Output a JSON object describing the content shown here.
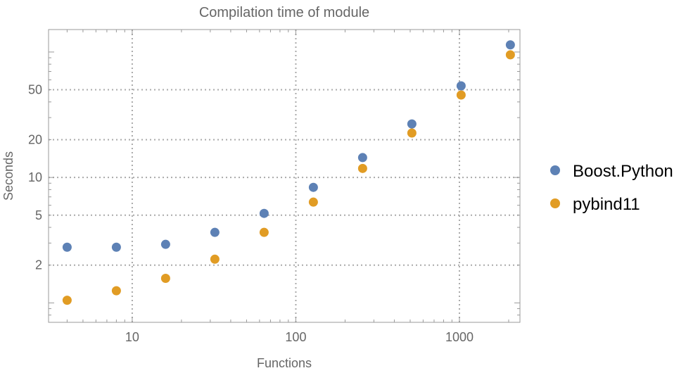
{
  "chart_data": {
    "type": "scatter",
    "title": "Compilation time of module",
    "xlabel": "Functions",
    "ylabel": "Seconds",
    "xscale": "log",
    "yscale": "log",
    "xlim": [
      3.08,
      2344
    ],
    "ylim": [
      0.7,
      151
    ],
    "xticks": [
      {
        "value": 10,
        "label": "10"
      },
      {
        "value": 100,
        "label": "100"
      },
      {
        "value": 1000,
        "label": "1000"
      }
    ],
    "yticks": [
      {
        "value": 2,
        "label": "2"
      },
      {
        "value": 5,
        "label": "5"
      },
      {
        "value": 10,
        "label": "10"
      },
      {
        "value": 20,
        "label": "20"
      },
      {
        "value": 50,
        "label": "50"
      }
    ],
    "grid": true,
    "legend_position": "right",
    "x": [
      4,
      8,
      16,
      32,
      64,
      128,
      256,
      512,
      1024,
      2048
    ],
    "series": [
      {
        "name": "Boost.Python",
        "color": "#5D81B5",
        "values": [
          2.78,
          2.78,
          2.93,
          3.65,
          5.17,
          8.34,
          14.4,
          26.7,
          53.7,
          114
        ]
      },
      {
        "name": "pybind11",
        "color": "#E19C24",
        "values": [
          1.05,
          1.25,
          1.57,
          2.23,
          3.65,
          6.36,
          11.8,
          22.6,
          45.4,
          95
        ]
      }
    ]
  }
}
